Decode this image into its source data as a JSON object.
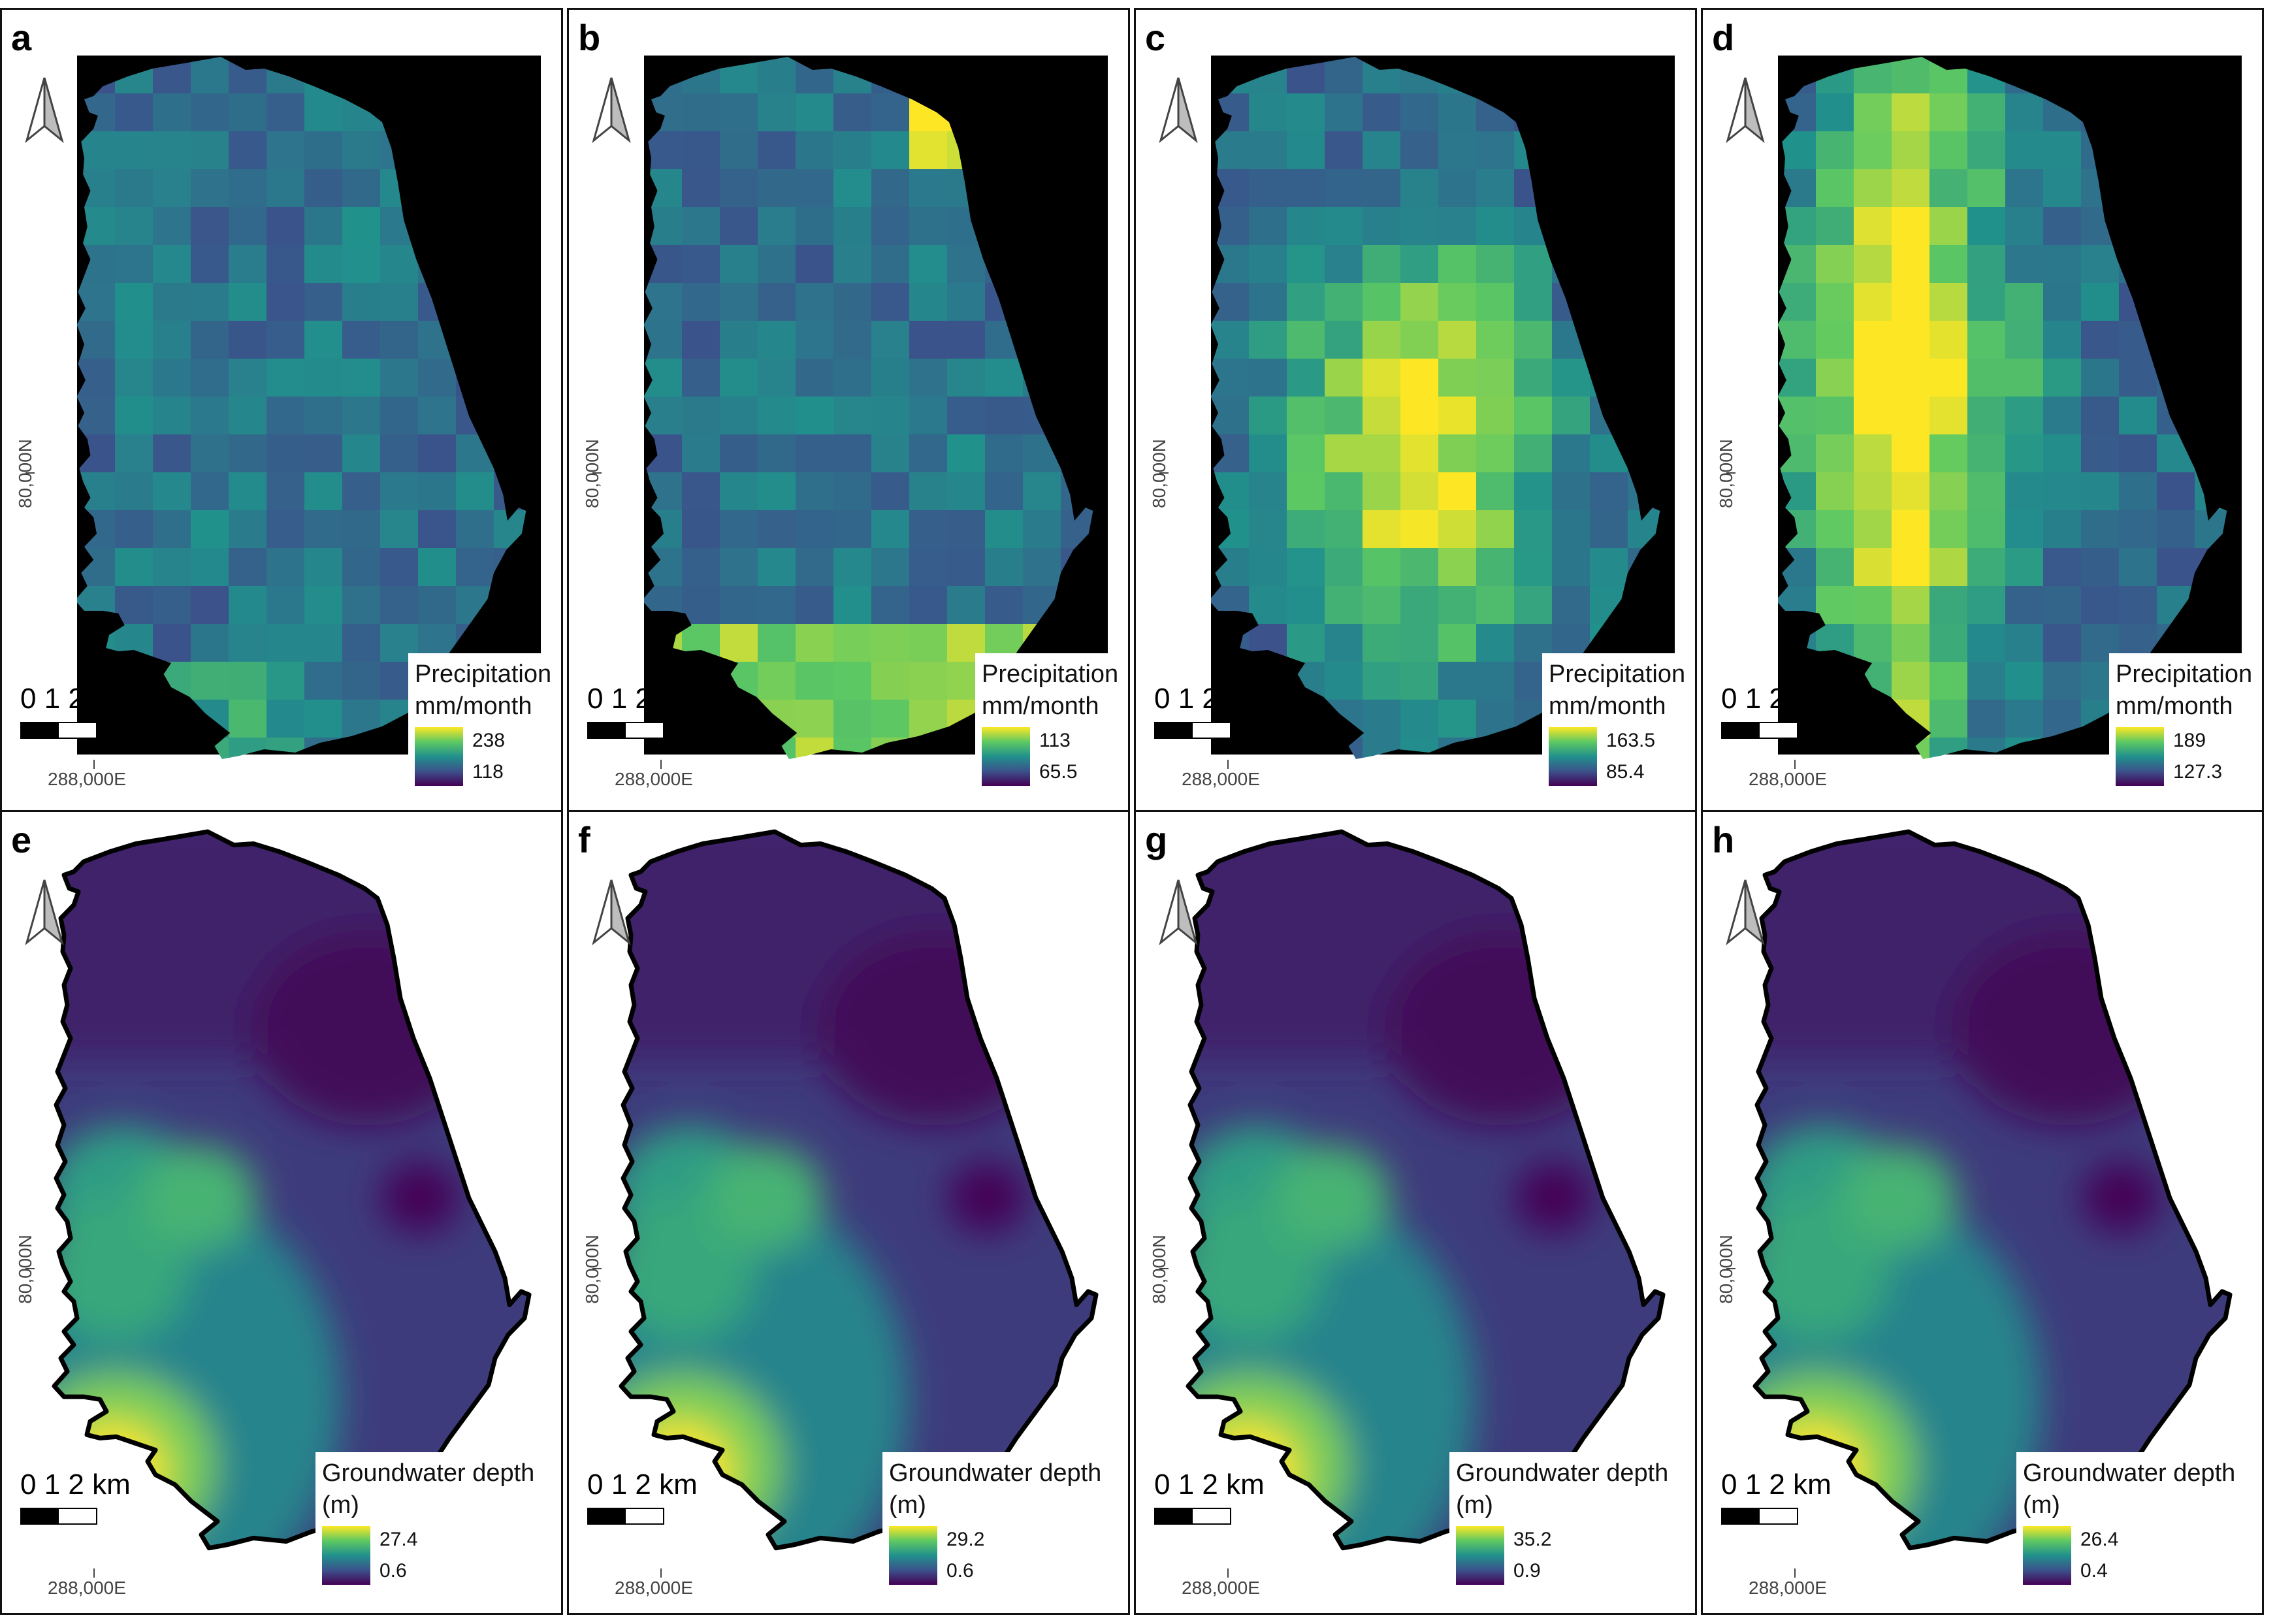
{
  "scale_bar": {
    "label": "0  1  2 km"
  },
  "x_coord_label": "288,000E",
  "y_coord_label": "80,000N",
  "colormap": [
    "#440154",
    "#3b528b",
    "#21918c",
    "#5ec962",
    "#fde725"
  ],
  "colors": {
    "outside_precip": "#000000",
    "outline_groundwater": "#000000"
  },
  "panels": [
    {
      "letter": "a",
      "type": "precipitation",
      "legend_title_1": "Precipitation",
      "legend_title_2": "mm/month",
      "max": "238",
      "min": "118"
    },
    {
      "letter": "b",
      "type": "precipitation",
      "legend_title_1": "Precipitation",
      "legend_title_2": "mm/month",
      "max": "113",
      "min": "65.5"
    },
    {
      "letter": "c",
      "type": "precipitation",
      "legend_title_1": "Precipitation",
      "legend_title_2": "mm/month",
      "max": "163.5",
      "min": "85.4"
    },
    {
      "letter": "d",
      "type": "precipitation",
      "legend_title_1": "Precipitation",
      "legend_title_2": "mm/month",
      "max": "189",
      "min": "127.3"
    },
    {
      "letter": "e",
      "type": "groundwater",
      "legend_title_1": "Groundwater depth",
      "legend_title_2": "(m)",
      "max": "27.4",
      "min": "0.6"
    },
    {
      "letter": "f",
      "type": "groundwater",
      "legend_title_1": "Groundwater depth",
      "legend_title_2": "(m)",
      "max": "29.2",
      "min": "0.6"
    },
    {
      "letter": "g",
      "type": "groundwater",
      "legend_title_1": "Groundwater depth",
      "legend_title_2": "(m)",
      "max": "35.2",
      "min": "0.9"
    },
    {
      "letter": "h",
      "type": "groundwater",
      "legend_title_1": "Groundwater depth",
      "legend_title_2": "(m)",
      "max": "26.4",
      "min": "0.4"
    }
  ]
}
